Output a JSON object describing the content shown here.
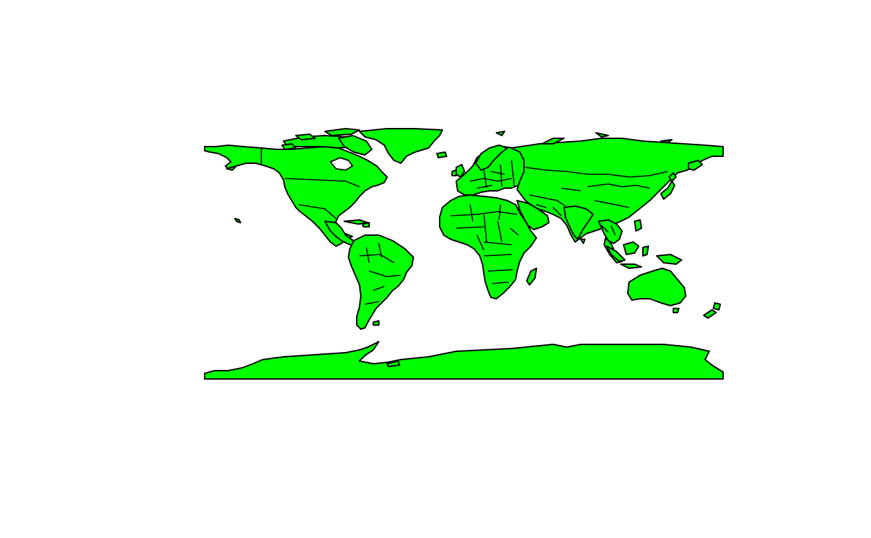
{
  "map": {
    "projection": "equirectangular",
    "extent": {
      "lon": [
        -180,
        180
      ],
      "lat": [
        -90,
        90
      ]
    },
    "land_color": "#00ff00",
    "border_color": "#000000",
    "background_color": "#ffffff",
    "layers": [
      "continents",
      "country-borders",
      "islands",
      "antarctica"
    ]
  }
}
